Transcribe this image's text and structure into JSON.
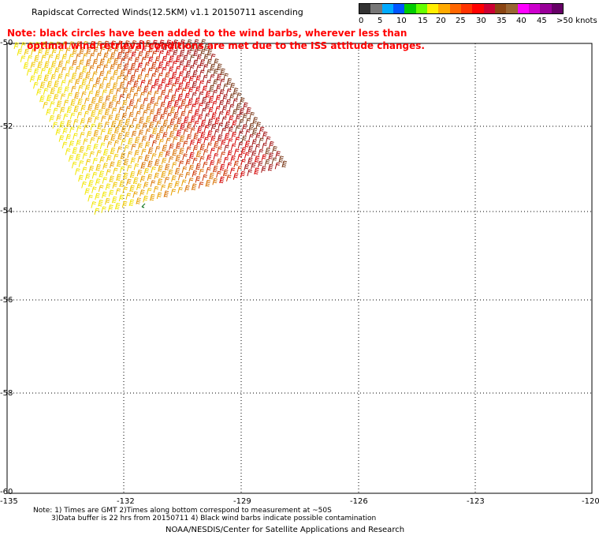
{
  "title": "Rapidscat Corrected Winds(12.5KM) v1.1 20150711 ascending",
  "note_line1": "Note: black circles have been added to the wind barbs, wherever less than",
  "note_line2": "      optimal wind retrieval conditions are met due to the ISS attitude changes.",
  "colorbar": {
    "colors": [
      "#333333",
      "#777777",
      "#00aaff",
      "#0055ff",
      "#00cc00",
      "#66ff00",
      "#ffee00",
      "#ffaa00",
      "#ff6600",
      "#ff3300",
      "#ff0000",
      "#cc0033",
      "#8b4513",
      "#996633",
      "#ff00ff",
      "#cc00cc",
      "#990099",
      "#660066"
    ],
    "labels": [
      "0",
      "5",
      "10",
      "15",
      "20",
      "25",
      "30",
      "35",
      "40",
      "45",
      ">50 knots"
    ]
  },
  "axes": {
    "lat_labels": [
      "-50",
      "-52",
      "-54",
      "-56",
      "-58",
      "-60"
    ],
    "lon_labels": [
      "-135",
      "-132",
      "-129",
      "-126",
      "-123",
      "-120"
    ]
  },
  "swath": {
    "colors_by_band": [
      "#f2e600",
      "#f0c800",
      "#e8a000",
      "#d87000",
      "#cc3300",
      "#d40000",
      "#a01010",
      "#7a3a1a"
    ]
  },
  "footnote_line1": "Note: 1) Times are GMT 2)Times along bottom correspond to measurement at ~50S",
  "footnote_line2": "3)Data buffer is 22 hrs from 20150711 4) Black wind barbs indicate possible contamination",
  "credit": "NOAA/NESDIS/Center for Satellite Applications and Research"
}
